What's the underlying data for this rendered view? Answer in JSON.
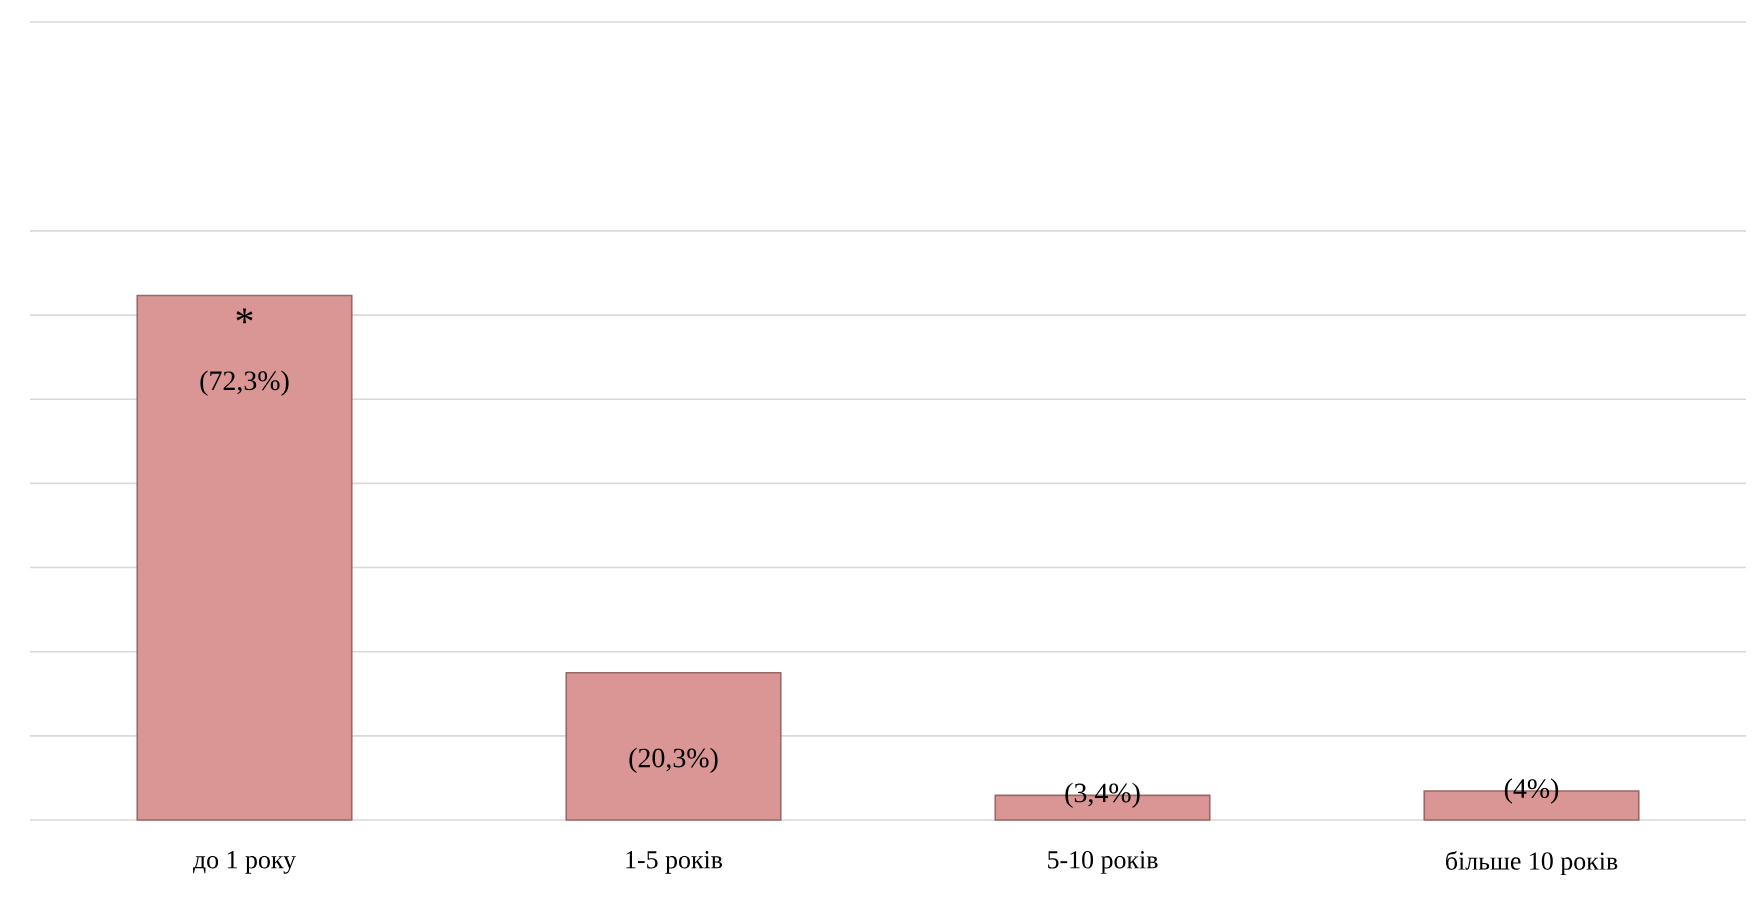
{
  "chart_data": {
    "type": "bar",
    "categories": [
      "до 1 року",
      "1-5 років",
      "5-10 років",
      "більше 10 років"
    ],
    "values": [
      72.3,
      20.3,
      3.4,
      4
    ],
    "value_labels": [
      "(72,3%)",
      "(20,3%)",
      "(3,4%)",
      "(4%)"
    ],
    "color": "#d99694",
    "ylim": [
      0,
      110
    ],
    "yticks": [
      {
        "value": 0,
        "label": null
      },
      {
        "value": 11.6,
        "label": null
      },
      {
        "value": 23.2,
        "label": null
      },
      {
        "value": 34.8,
        "label": null
      },
      {
        "value": 46.4,
        "label": null
      },
      {
        "value": 58,
        "label": null
      },
      {
        "value": 69.6,
        "label": null
      },
      {
        "value": 81.2,
        "label": null
      },
      {
        "value": 110,
        "label": null
      }
    ],
    "grid": "y",
    "tick_labels": "x",
    "annotations": [
      {
        "text": "*",
        "x": "до 1 року",
        "y": 72.3
      }
    ]
  }
}
